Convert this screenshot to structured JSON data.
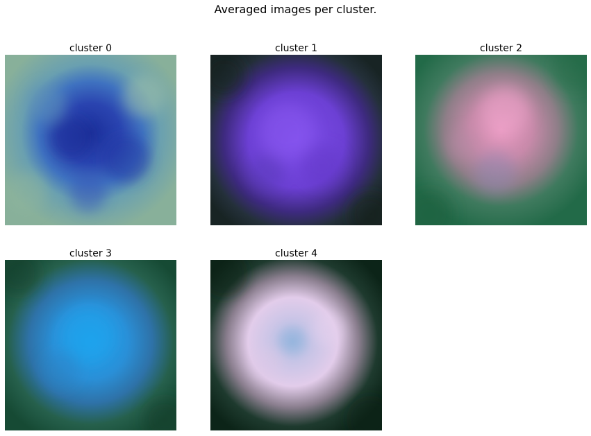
{
  "figure": {
    "title": "Averaged images per cluster."
  },
  "panels": [
    {
      "title": "cluster 0",
      "background": "#7aa48e",
      "mid": "#3f6fc0",
      "core": "#2030a0"
    },
    {
      "title": "cluster 1",
      "background": "#1a2a2a",
      "mid": "#6a3fd0",
      "core": "#7a4ae8"
    },
    {
      "title": "cluster 2",
      "background": "#2e7a58",
      "mid": "#b07a98",
      "core": "#e79abf"
    },
    {
      "title": "cluster 3",
      "background": "#1d5540",
      "mid": "#2f7fc8",
      "core": "#1f9fe8"
    },
    {
      "title": "cluster 4",
      "background": "#0e2a20",
      "mid": "#d0b8d8",
      "core": "#9fb8e0"
    }
  ]
}
